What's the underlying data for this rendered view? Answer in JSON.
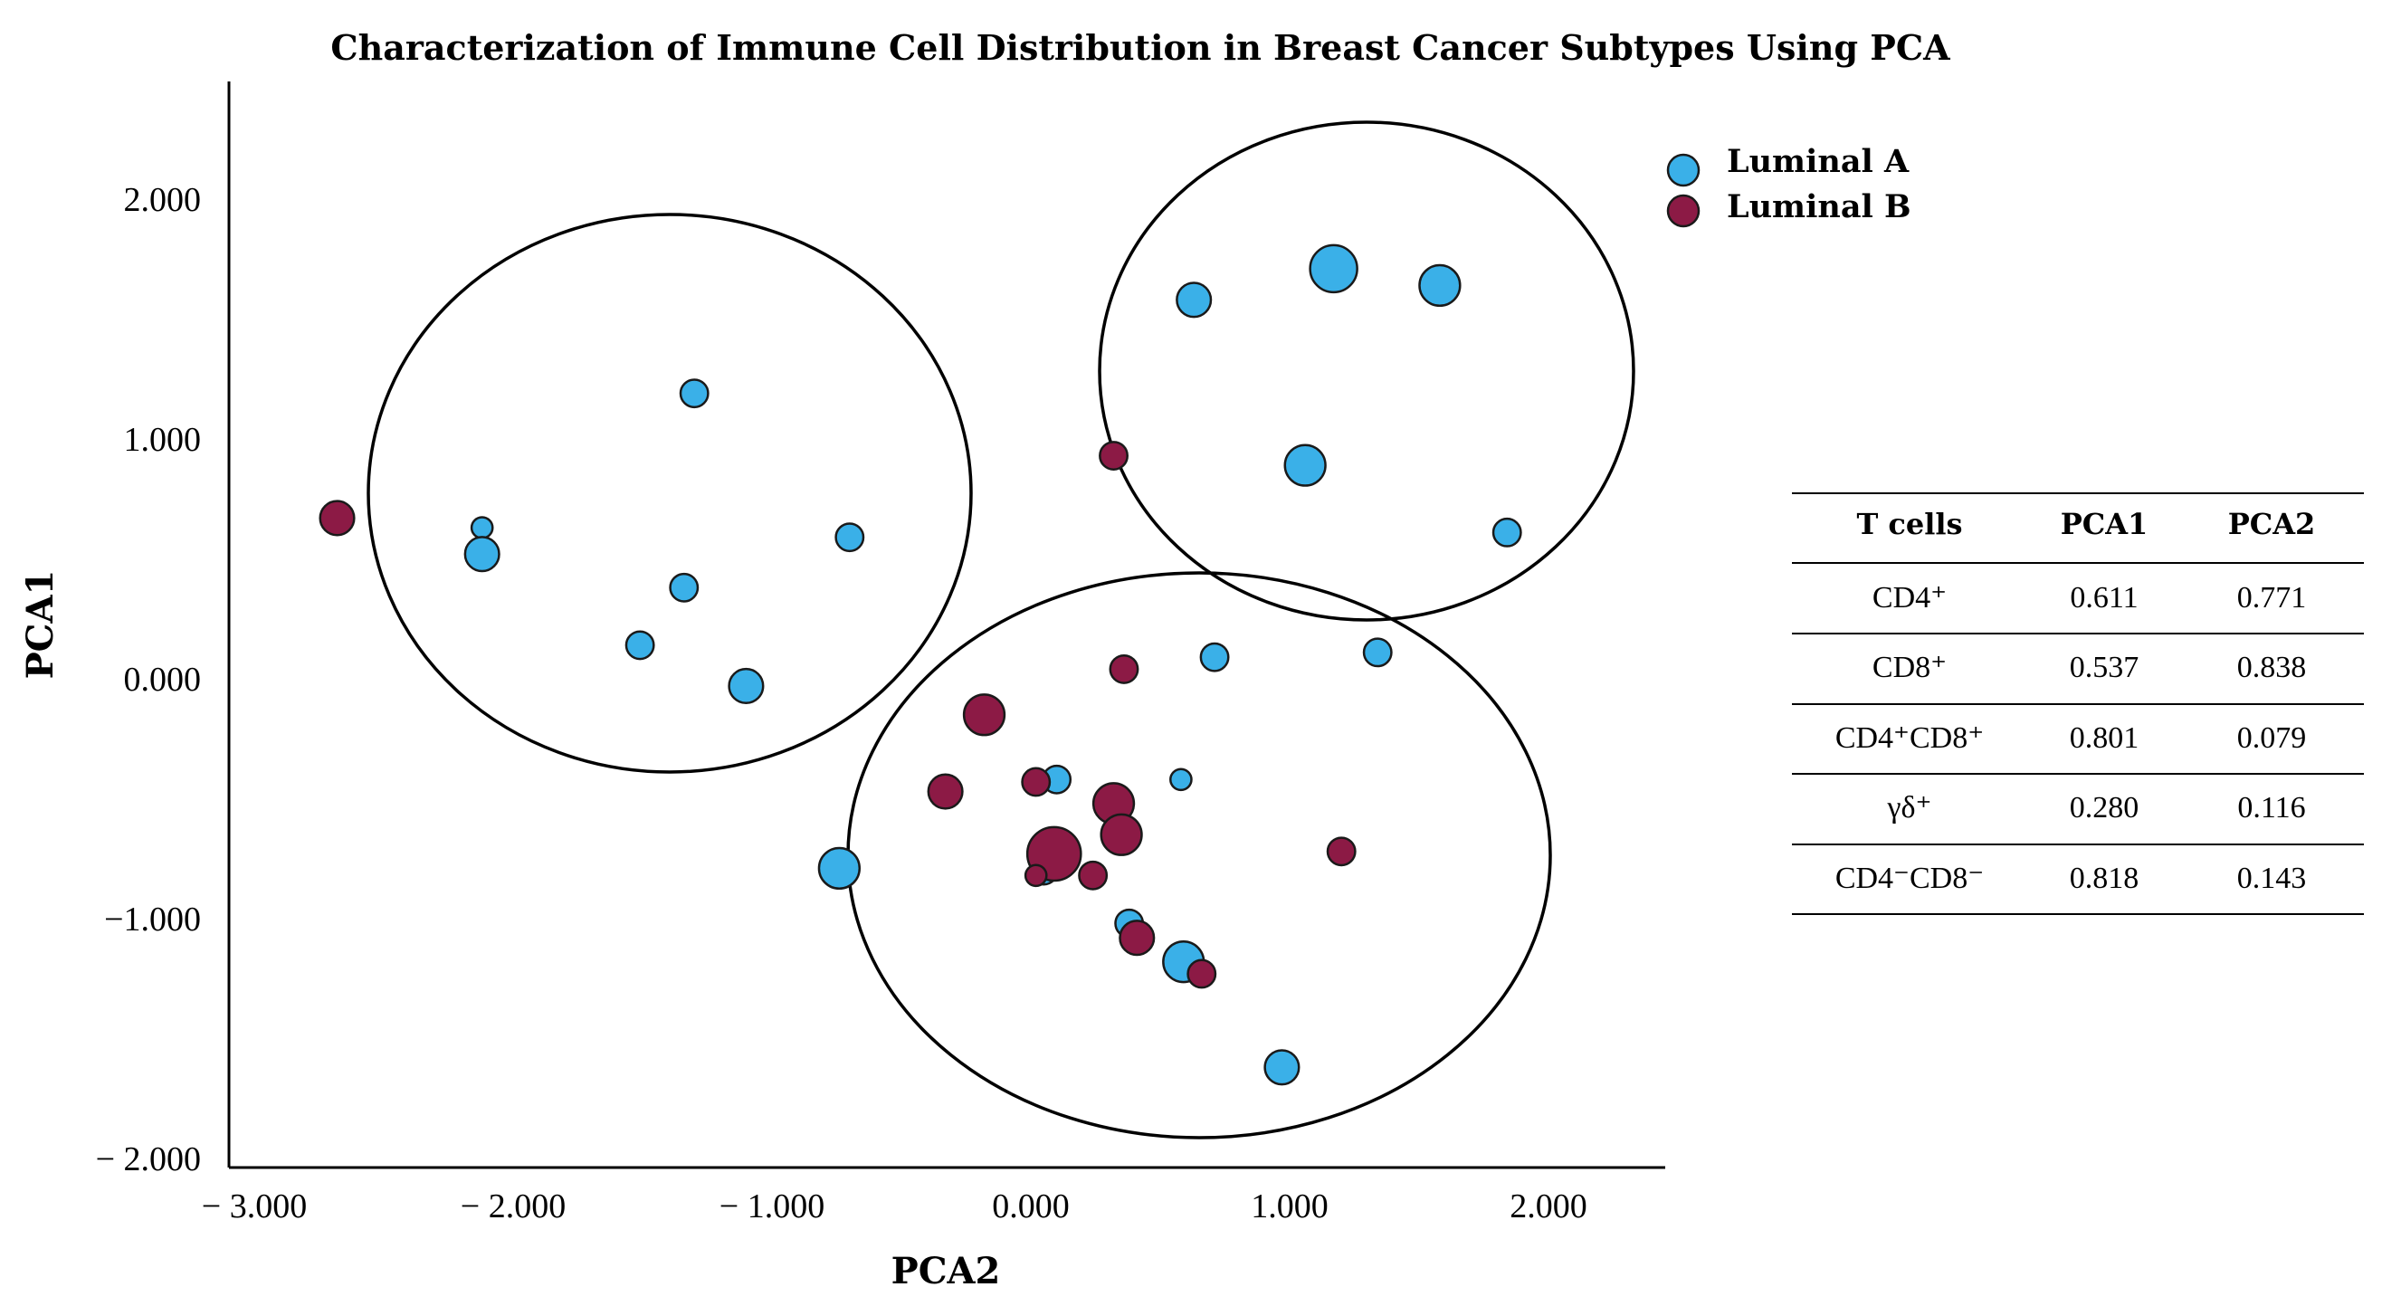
{
  "chart_data": {
    "type": "scatter",
    "title": "Characterization of Immune Cell Distribution in Breast Cancer Subtypes Using PCA",
    "xlabel": "PCA2",
    "ylabel": "PCA1",
    "xlim": [
      -3.3,
      2.3
    ],
    "ylim": [
      -2.0,
      2.4
    ],
    "xticks": [
      -3.0,
      -2.0,
      -1.0,
      0.0,
      1.0,
      2.0
    ],
    "xtick_labels": [
      "− 3.000",
      "− 2.000",
      "− 1.000",
      "0.000",
      "1.000",
      "2.000"
    ],
    "yticks": [
      2.0,
      1.0,
      0.0,
      -1.0,
      -2.0
    ],
    "ytick_labels": [
      "2.000",
      "1.000",
      "0.000",
      "−1.000",
      "− 2.000"
    ],
    "legend_position": "top-right",
    "series": [
      {
        "name": "Luminal A",
        "color": "#3ab0e8",
        "points": [
          {
            "x": -1.3,
            "y": 1.19,
            "size": 2
          },
          {
            "x": -2.12,
            "y": 0.63,
            "size": 1
          },
          {
            "x": -2.12,
            "y": 0.52,
            "size": 3
          },
          {
            "x": -0.7,
            "y": 0.59,
            "size": 2
          },
          {
            "x": -1.34,
            "y": 0.38,
            "size": 2
          },
          {
            "x": -1.51,
            "y": 0.14,
            "size": 2
          },
          {
            "x": -1.1,
            "y": -0.03,
            "size": 3
          },
          {
            "x": 0.63,
            "y": 1.58,
            "size": 3
          },
          {
            "x": 1.17,
            "y": 1.71,
            "size": 5
          },
          {
            "x": 1.58,
            "y": 1.64,
            "size": 4
          },
          {
            "x": 1.06,
            "y": 0.89,
            "size": 4
          },
          {
            "x": 1.84,
            "y": 0.61,
            "size": 2
          },
          {
            "x": 0.71,
            "y": 0.09,
            "size": 2
          },
          {
            "x": 1.34,
            "y": 0.11,
            "size": 2
          },
          {
            "x": 0.1,
            "y": -0.42,
            "size": 2
          },
          {
            "x": 0.58,
            "y": -0.42,
            "size": 1
          },
          {
            "x": -0.74,
            "y": -0.79,
            "size": 4
          },
          {
            "x": 0.05,
            "y": -0.8,
            "size": 2
          },
          {
            "x": 0.38,
            "y": -1.02,
            "size": 2
          },
          {
            "x": 0.59,
            "y": -1.18,
            "size": 4
          },
          {
            "x": 0.97,
            "y": -1.62,
            "size": 3
          }
        ]
      },
      {
        "name": "Luminal B",
        "color": "#8c1a45",
        "points": [
          {
            "x": -2.68,
            "y": 0.67,
            "size": 3
          },
          {
            "x": 0.32,
            "y": 0.93,
            "size": 2
          },
          {
            "x": 0.36,
            "y": 0.04,
            "size": 2
          },
          {
            "x": -0.18,
            "y": -0.15,
            "size": 4
          },
          {
            "x": -0.33,
            "y": -0.47,
            "size": 3
          },
          {
            "x": 0.02,
            "y": -0.43,
            "size": 2
          },
          {
            "x": 0.32,
            "y": -0.52,
            "size": 4
          },
          {
            "x": 0.35,
            "y": -0.65,
            "size": 4
          },
          {
            "x": 0.09,
            "y": -0.73,
            "size": 6
          },
          {
            "x": 0.02,
            "y": -0.82,
            "size": 1
          },
          {
            "x": 0.24,
            "y": -0.82,
            "size": 2
          },
          {
            "x": 1.2,
            "y": -0.72,
            "size": 2
          },
          {
            "x": 0.41,
            "y": -1.08,
            "size": 3
          },
          {
            "x": 0.66,
            "y": -1.23,
            "size": 2
          }
        ]
      }
    ],
    "cluster_ellipses": 3
  },
  "table": {
    "headers": [
      "T cells",
      "PCA1",
      "PCA2"
    ],
    "rows": [
      {
        "cell": "CD4⁺",
        "pca1": "0.611",
        "pca2": "0.771"
      },
      {
        "cell": "CD8⁺",
        "pca1": "0.537",
        "pca2": "0.838"
      },
      {
        "cell": "CD4⁺CD8⁺",
        "pca1": "0.801",
        "pca2": "0.079"
      },
      {
        "cell": "γδ⁺",
        "pca1": "0.280",
        "pca2": "0.116"
      },
      {
        "cell": "CD4⁻CD8⁻",
        "pca1": "0.818",
        "pca2": "0.143"
      }
    ]
  }
}
